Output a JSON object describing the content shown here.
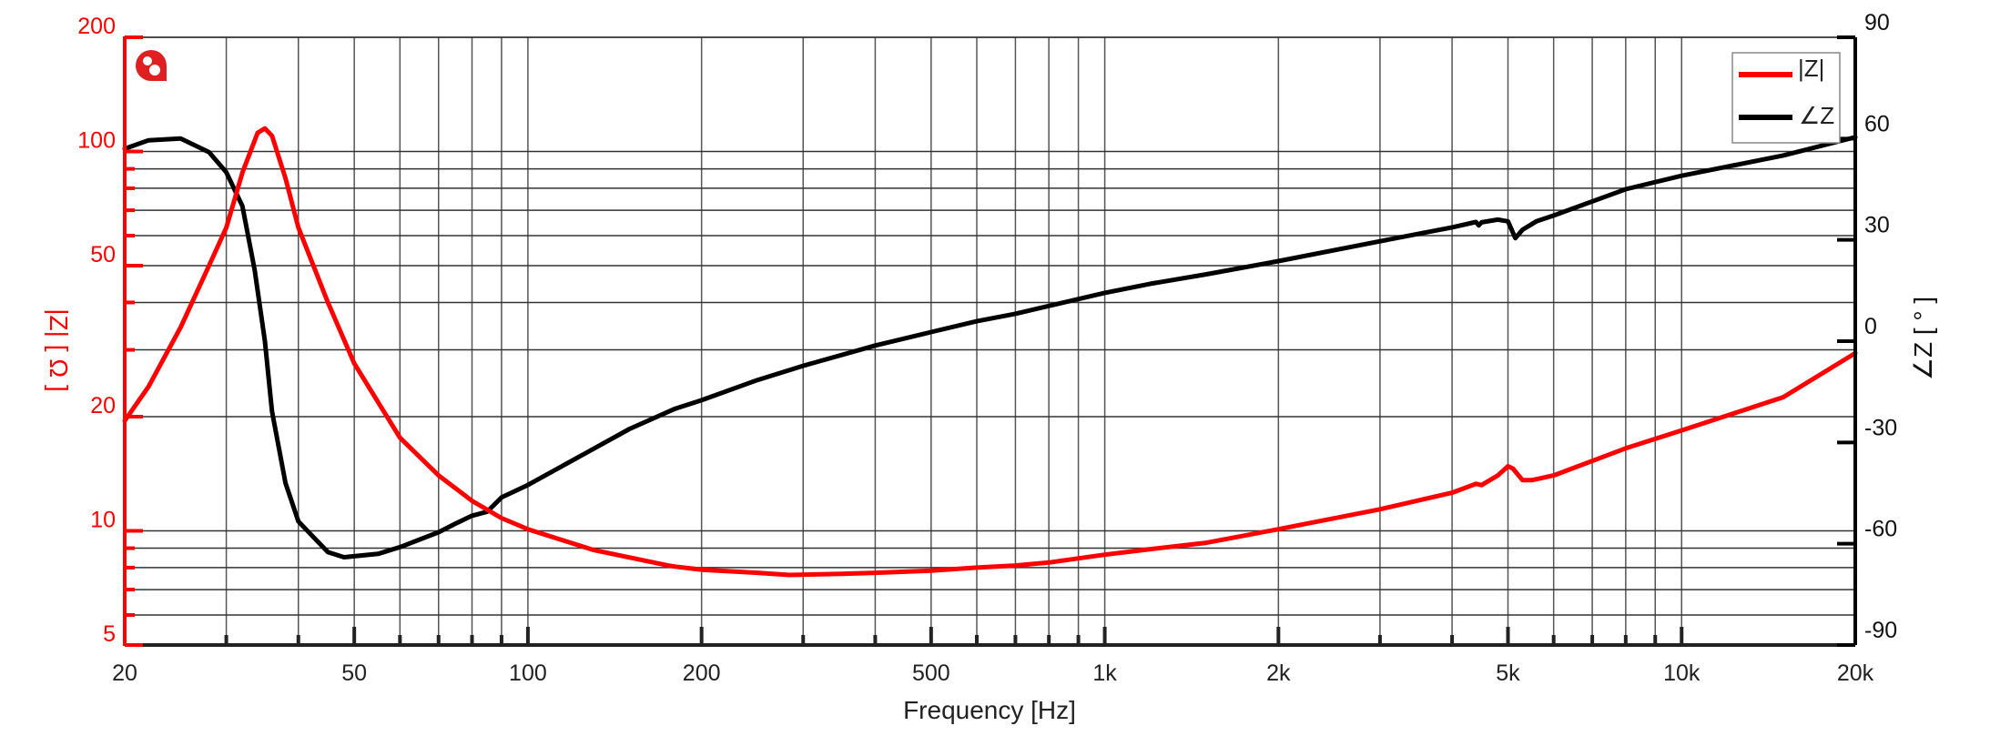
{
  "chart_data": {
    "type": "line",
    "title": "",
    "xlabel": "Frequency [Hz]",
    "ylabel": "|Z| [ Ω ]",
    "y2label": "∠Z [ ° ]",
    "xscale": "log",
    "yscale": "log",
    "xlim": [
      20,
      20000
    ],
    "ylim": [
      5,
      200
    ],
    "y2lim": [
      -90,
      90
    ],
    "grid": true,
    "legend_position": "upper right",
    "x_ticks": [
      20,
      50,
      100,
      200,
      500,
      1000,
      2000,
      5000,
      10000,
      20000
    ],
    "x_tick_labels": [
      "20",
      "50",
      "100",
      "200",
      "500",
      "1k",
      "2k",
      "5k",
      "10k",
      "20k"
    ],
    "y_ticks": [
      5,
      10,
      20,
      50,
      100,
      200
    ],
    "y_tick_labels": [
      "5",
      "10",
      "20",
      "50",
      "100",
      "200"
    ],
    "y2_ticks": [
      -90,
      -60,
      -30,
      0,
      30,
      60,
      90
    ],
    "y2_tick_labels": [
      "-90",
      "-60",
      "-30",
      "0",
      "30",
      "60",
      "90"
    ],
    "series": [
      {
        "name": "|Z|",
        "axis": "left",
        "color": "#ff0000",
        "x": [
          20,
          22,
          25,
          28,
          30,
          32,
          34,
          35,
          36,
          38,
          40,
          45,
          50,
          60,
          70,
          80,
          90,
          100,
          130,
          175,
          180,
          200,
          250,
          284,
          350,
          400,
          500,
          600,
          700,
          800,
          1000,
          1200,
          1500,
          2000,
          3000,
          4000,
          4400,
          4500,
          4800,
          5000,
          5100,
          5300,
          5500,
          6000,
          8000,
          10000,
          15000,
          20000
        ],
        "values": [
          19.5,
          24,
          34.4,
          50,
          63,
          88,
          112,
          115,
          110,
          85,
          63,
          40,
          27.6,
          17.6,
          14.0,
          12.0,
          10.8,
          10.1,
          8.9,
          8.1,
          8.05,
          7.9,
          7.75,
          7.65,
          7.7,
          7.75,
          7.85,
          8.0,
          8.1,
          8.25,
          8.65,
          8.95,
          9.3,
          10.1,
          11.4,
          12.6,
          13.3,
          13.2,
          14.0,
          14.8,
          14.6,
          13.6,
          13.6,
          14.0,
          16.5,
          18.4,
          22.5,
          29.4
        ]
      },
      {
        "name": "∠Z",
        "axis": "right",
        "color": "#000000",
        "x": [
          20,
          22,
          25,
          28,
          30,
          32,
          33.6,
          35,
          36,
          38,
          40,
          45,
          48,
          55,
          60,
          70,
          75,
          80,
          85,
          90,
          100,
          150,
          180,
          200,
          250,
          300,
          400,
          500,
          600,
          700,
          1000,
          1200,
          1500,
          2000,
          3000,
          4000,
          4400,
          4450,
          4500,
          4800,
          5000,
          5150,
          5300,
          5600,
          6000,
          8000,
          10000,
          15000,
          20000
        ],
        "values": [
          57,
          59.5,
          60,
          56,
          50,
          40,
          21,
          0,
          -20.8,
          -42,
          -53.4,
          -62.5,
          -64,
          -63,
          -61,
          -56.6,
          -54,
          -51.7,
          -50.5,
          -46.3,
          -42.6,
          -26,
          -20,
          -17.5,
          -11.5,
          -7.3,
          -1.3,
          2.7,
          5.9,
          8.1,
          14.3,
          17,
          19.8,
          23.7,
          29.6,
          33.7,
          35.3,
          34.3,
          35.2,
          36,
          35.5,
          30.5,
          33,
          35.5,
          37.2,
          45,
          49,
          55,
          60.4
        ]
      }
    ]
  },
  "legend": {
    "items": [
      {
        "label": "|Z|",
        "color": "#ff0000"
      },
      {
        "label": "∠Z",
        "color": "#000000"
      }
    ]
  },
  "axes": {
    "x_title": "Frequency [Hz]",
    "y_title": "|Z| [ Ω ]",
    "y2_title": "∠Z [ ° ]",
    "left_axis_color": "#ff0000",
    "right_axis_color": "#000000"
  },
  "logo": {
    "icon": "brand-logo-icon",
    "color": "#e02020"
  }
}
